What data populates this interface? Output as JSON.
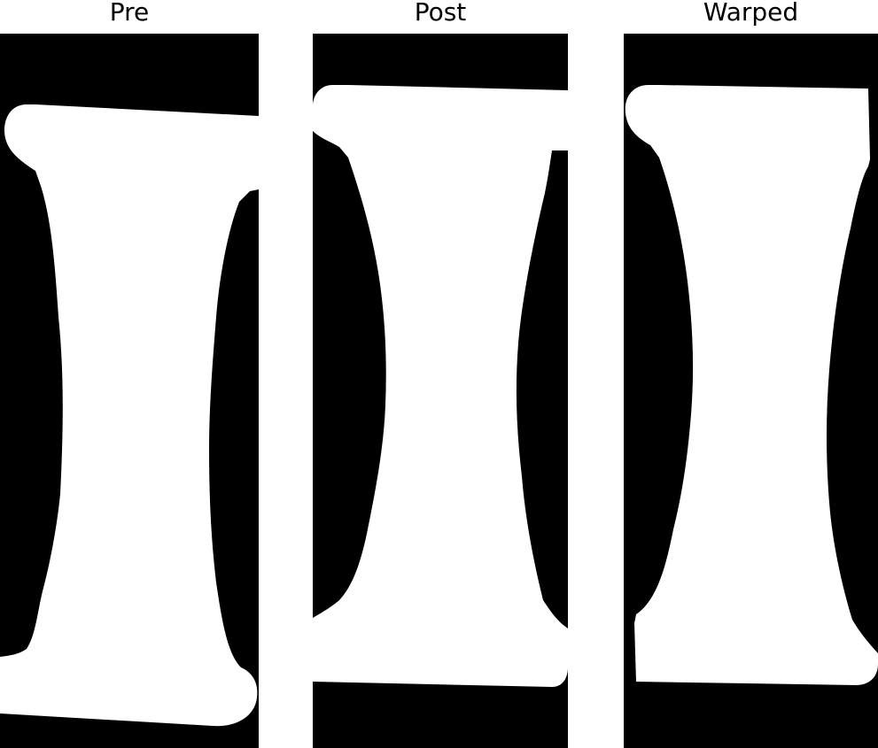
{
  "panels": [
    {
      "title": "Pre"
    },
    {
      "title": "Post"
    },
    {
      "title": "Warped"
    }
  ],
  "colors": {
    "background": "#000000",
    "foreground": "#ffffff",
    "title": "#000000"
  }
}
